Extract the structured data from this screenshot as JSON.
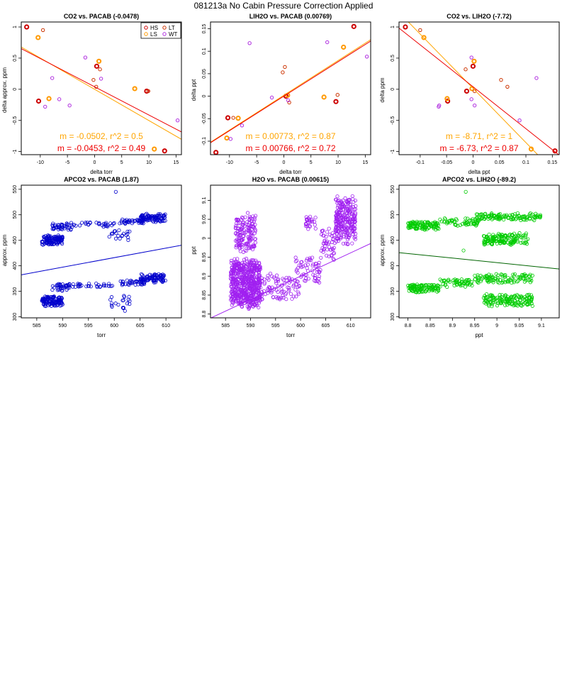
{
  "page_title": "081213a   No Cabin Pressure Correction Applied",
  "colors": {
    "HS": "#cc0000",
    "LS": "#ff9900",
    "LT": "#cc3300",
    "WT": "#b030e0",
    "fit_LS": "#ffa500",
    "fit_HS": "#ee0000",
    "apco2_pacab": "#0000cc",
    "h2o_pacab": "#a020f0",
    "apco2_lih2o": "#00cc00",
    "apco2_lih2o_fit": "#006400"
  },
  "chart_data": [
    {
      "type": "scatter",
      "title": "CO2 vs. PACAB (-0.0478)",
      "xlabel": "delta torr",
      "ylabel": "delta approx. ppm",
      "xlim": [
        -13.5,
        16
      ],
      "ylim": [
        -1.05,
        1.08
      ],
      "xticks": [
        -10,
        -5,
        0,
        5,
        10,
        15
      ],
      "yticks": [
        -1.0,
        -0.5,
        0.0,
        0.5,
        1.0
      ],
      "legend": {
        "position": "top-right",
        "entries": [
          "HS",
          "LS",
          "LT",
          "WT"
        ]
      },
      "series": [
        {
          "name": "HS",
          "style": "bold",
          "points": [
            [
              -12.5,
              1.0
            ],
            [
              -10.3,
              -0.19
            ],
            [
              0.4,
              0.37
            ],
            [
              9.6,
              -0.03
            ],
            [
              12.9,
              -0.99
            ]
          ]
        },
        {
          "name": "LS",
          "style": "bold",
          "points": [
            [
              -10.4,
              0.83
            ],
            [
              -8.4,
              -0.15
            ],
            [
              0.8,
              0.45
            ],
            [
              7.4,
              0.01
            ],
            [
              11.0,
              -0.96
            ]
          ]
        },
        {
          "name": "LT",
          "style": "thin",
          "points": [
            [
              -9.5,
              0.95
            ],
            [
              -0.2,
              0.15
            ],
            [
              0.3,
              0.04
            ],
            [
              1.0,
              0.32
            ],
            [
              9.9,
              -0.03
            ]
          ]
        },
        {
          "name": "WT",
          "style": "thin",
          "points": [
            [
              -9.1,
              -0.28
            ],
            [
              -7.8,
              0.18
            ],
            [
              -6.5,
              -0.16
            ],
            [
              -4.6,
              -0.26
            ],
            [
              -1.7,
              0.51
            ],
            [
              1.2,
              0.17
            ],
            [
              15.3,
              -0.5
            ]
          ]
        }
      ],
      "fits": [
        {
          "series": "LS",
          "slope": -0.0502,
          "intercept": 0.0,
          "label": "m = -0.0502, r^2 = 0.5"
        },
        {
          "series": "HS",
          "slope": -0.0453,
          "intercept": 0.04,
          "label": "m = -0.0453, r^2 = 0.49"
        }
      ]
    },
    {
      "type": "scatter",
      "title": "LIH2O vs. PACAB (0.00769)",
      "xlabel": "delta torr",
      "ylabel": "delta ppt",
      "xlim": [
        -13.5,
        16
      ],
      "ylim": [
        -0.13,
        0.165
      ],
      "xticks": [
        -10,
        -5,
        0,
        5,
        10,
        15
      ],
      "yticks": [
        -0.1,
        -0.05,
        0.0,
        0.05,
        0.1,
        0.15
      ],
      "series": [
        {
          "name": "HS",
          "style": "bold",
          "points": [
            [
              -12.5,
              -0.125
            ],
            [
              -10.3,
              -0.048
            ],
            [
              0.4,
              0.0
            ],
            [
              9.6,
              -0.012
            ],
            [
              12.9,
              0.155
            ]
          ]
        },
        {
          "name": "LS",
          "style": "bold",
          "points": [
            [
              -10.5,
              -0.093
            ],
            [
              -8.4,
              -0.049
            ],
            [
              0.7,
              0.002
            ],
            [
              7.4,
              -0.002
            ],
            [
              11.0,
              0.109
            ]
          ]
        },
        {
          "name": "LT",
          "style": "thin",
          "points": [
            [
              -9.3,
              -0.048
            ],
            [
              -0.2,
              0.053
            ],
            [
              0.2,
              0.065
            ],
            [
              1.0,
              -0.014
            ],
            [
              9.9,
              0.003
            ]
          ]
        },
        {
          "name": "WT",
          "style": "thin",
          "points": [
            [
              -9.8,
              -0.095
            ],
            [
              -7.7,
              -0.065
            ],
            [
              -6.3,
              0.118
            ],
            [
              -2.2,
              -0.003
            ],
            [
              0.8,
              -0.009
            ],
            [
              8.0,
              0.12
            ],
            [
              15.3,
              0.088
            ]
          ]
        }
      ],
      "fits": [
        {
          "series": "LS",
          "slope": 0.00773,
          "intercept": 0.002,
          "label": "m = 0.00773, r^2 = 0.87"
        },
        {
          "series": "HS",
          "slope": 0.00766,
          "intercept": 0.0,
          "label": "m = 0.00766, r^2 = 0.72"
        }
      ]
    },
    {
      "type": "scatter",
      "title": "CO2 vs. LIH2O (-7.72)",
      "xlabel": "delta ppt",
      "ylabel": "delta ppm",
      "xlim": [
        -0.14,
        0.163
      ],
      "ylim": [
        -1.05,
        1.08
      ],
      "xticks": [
        -0.1,
        -0.05,
        0.0,
        0.05,
        0.1,
        0.15
      ],
      "yticks": [
        -1.0,
        -0.5,
        0.0,
        0.5,
        1.0
      ],
      "series": [
        {
          "name": "HS",
          "style": "bold",
          "points": [
            [
              -0.128,
              1.0
            ],
            [
              -0.048,
              -0.19
            ],
            [
              0.0,
              0.37
            ],
            [
              -0.012,
              -0.03
            ],
            [
              0.155,
              -0.99
            ]
          ]
        },
        {
          "name": "LS",
          "style": "bold",
          "points": [
            [
              -0.093,
              0.83
            ],
            [
              -0.049,
              -0.15
            ],
            [
              0.002,
              0.45
            ],
            [
              -0.002,
              0.01
            ],
            [
              0.11,
              -0.96
            ]
          ]
        },
        {
          "name": "LT",
          "style": "thin",
          "points": [
            [
              -0.1,
              0.95
            ],
            [
              0.053,
              0.15
            ],
            [
              0.065,
              0.04
            ],
            [
              -0.014,
              0.32
            ],
            [
              0.003,
              -0.03
            ]
          ]
        },
        {
          "name": "WT",
          "style": "thin",
          "points": [
            [
              -0.065,
              -0.28
            ],
            [
              0.12,
              0.18
            ],
            [
              -0.003,
              -0.16
            ],
            [
              -0.064,
              -0.26
            ],
            [
              -0.003,
              0.51
            ],
            [
              0.088,
              -0.5
            ],
            [
              0.003,
              -0.26
            ]
          ]
        }
      ],
      "fits": [
        {
          "series": "LS",
          "slope": -8.71,
          "intercept": 0.015,
          "label": "m = -8.71, r^2 = 1"
        },
        {
          "series": "HS",
          "slope": -6.73,
          "intercept": 0.04,
          "label": "m = -6.73, r^2 = 0.87"
        }
      ]
    },
    {
      "type": "scatter",
      "title": "APCO2 vs. PACAB (1.87)",
      "xlabel": "torr",
      "ylabel": "approx. ppm",
      "xlim": [
        582,
        613
      ],
      "ylim": [
        298,
        558
      ],
      "xticks": [
        585,
        590,
        595,
        600,
        605,
        610
      ],
      "yticks": [
        300,
        350,
        400,
        450,
        500,
        550
      ],
      "color_key": "apco2_pacab",
      "clusters": [
        {
          "x": [
            586,
            590
          ],
          "y": [
            440,
            462
          ],
          "n": 120
        },
        {
          "x": [
            588,
            592
          ],
          "y": [
            468,
            485
          ],
          "n": 40
        },
        {
          "x": [
            592,
            600
          ],
          "y": [
            476,
            487
          ],
          "n": 30
        },
        {
          "x": [
            599,
            603
          ],
          "y": [
            450,
            470
          ],
          "n": 20
        },
        {
          "x": [
            601,
            606
          ],
          "y": [
            482,
            493
          ],
          "n": 35
        },
        {
          "x": [
            605,
            610
          ],
          "y": [
            484,
            503
          ],
          "n": 90
        },
        {
          "x": [
            586,
            590
          ],
          "y": [
            320,
            342
          ],
          "n": 120
        },
        {
          "x": [
            588,
            592
          ],
          "y": [
            350,
            366
          ],
          "n": 40
        },
        {
          "x": [
            592,
            600
          ],
          "y": [
            357,
            367
          ],
          "n": 30
        },
        {
          "x": [
            599,
            603
          ],
          "y": [
            310,
            345
          ],
          "n": 20
        },
        {
          "x": [
            601,
            606
          ],
          "y": [
            362,
            372
          ],
          "n": 35
        },
        {
          "x": [
            605,
            610
          ],
          "y": [
            366,
            385
          ],
          "n": 90
        }
      ],
      "outliers": [
        [
          600.3,
          545
        ]
      ],
      "fit": {
        "slope": 1.87,
        "intercept": -706,
        "color_key": "apco2_pacab"
      }
    },
    {
      "type": "scatter",
      "title": "H2O vs. PACAB (0.00615)",
      "xlabel": "torr",
      "ylabel": "ppt",
      "xlim": [
        582,
        614
      ],
      "ylim": [
        8.79,
        9.14
      ],
      "xticks": [
        585,
        590,
        595,
        600,
        605,
        610
      ],
      "yticks": [
        8.8,
        8.85,
        8.9,
        8.95,
        9.0,
        9.05,
        9.1
      ],
      "color_key": "h2o_pacab",
      "clusters": [
        {
          "x": [
            586,
            592
          ],
          "y": [
            8.81,
            8.95
          ],
          "n": 600
        },
        {
          "x": [
            587,
            591
          ],
          "y": [
            8.96,
            9.07
          ],
          "n": 150
        },
        {
          "x": [
            592,
            600
          ],
          "y": [
            8.83,
            8.91
          ],
          "n": 90
        },
        {
          "x": [
            599,
            604
          ],
          "y": [
            8.88,
            8.96
          ],
          "n": 60
        },
        {
          "x": [
            601,
            603
          ],
          "y": [
            9.02,
            9.06
          ],
          "n": 25
        },
        {
          "x": [
            604,
            607
          ],
          "y": [
            8.94,
            9.03
          ],
          "n": 50
        },
        {
          "x": [
            607,
            611
          ],
          "y": [
            8.98,
            9.12
          ],
          "n": 250
        }
      ],
      "fit": {
        "slope": 0.00615,
        "intercept": 5.21,
        "color_key": "h2o_pacab"
      }
    },
    {
      "type": "scatter",
      "title": "APCO2 vs. LIH2O (-89.2)",
      "xlabel": "ppt",
      "ylabel": "approx. ppm",
      "xlim": [
        8.78,
        9.14
      ],
      "ylim": [
        298,
        558
      ],
      "xticks": [
        8.8,
        8.85,
        8.9,
        8.95,
        9.0,
        9.05,
        9.1
      ],
      "yticks": [
        300,
        350,
        400,
        450,
        500,
        550
      ],
      "color_key": "apco2_lih2o",
      "clusters": [
        {
          "x": [
            8.8,
            8.87
          ],
          "y": [
            470,
            487
          ],
          "n": 110
        },
        {
          "x": [
            8.87,
            8.96
          ],
          "y": [
            478,
            495
          ],
          "n": 60
        },
        {
          "x": [
            8.95,
            9.1
          ],
          "y": [
            488,
            504
          ],
          "n": 120
        },
        {
          "x": [
            8.97,
            9.07
          ],
          "y": [
            440,
            465
          ],
          "n": 150
        },
        {
          "x": [
            8.8,
            8.87
          ],
          "y": [
            347,
            365
          ],
          "n": 110
        },
        {
          "x": [
            8.87,
            8.96
          ],
          "y": [
            358,
            375
          ],
          "n": 60
        },
        {
          "x": [
            8.95,
            9.08
          ],
          "y": [
            365,
            385
          ],
          "n": 100
        },
        {
          "x": [
            8.97,
            9.08
          ],
          "y": [
            320,
            345
          ],
          "n": 150
        }
      ],
      "outliers": [
        [
          8.93,
          545
        ],
        [
          8.925,
          430
        ]
      ],
      "fit": {
        "slope": -89.2,
        "intercept": 1209,
        "color_key": "apco2_lih2o_fit"
      }
    }
  ]
}
